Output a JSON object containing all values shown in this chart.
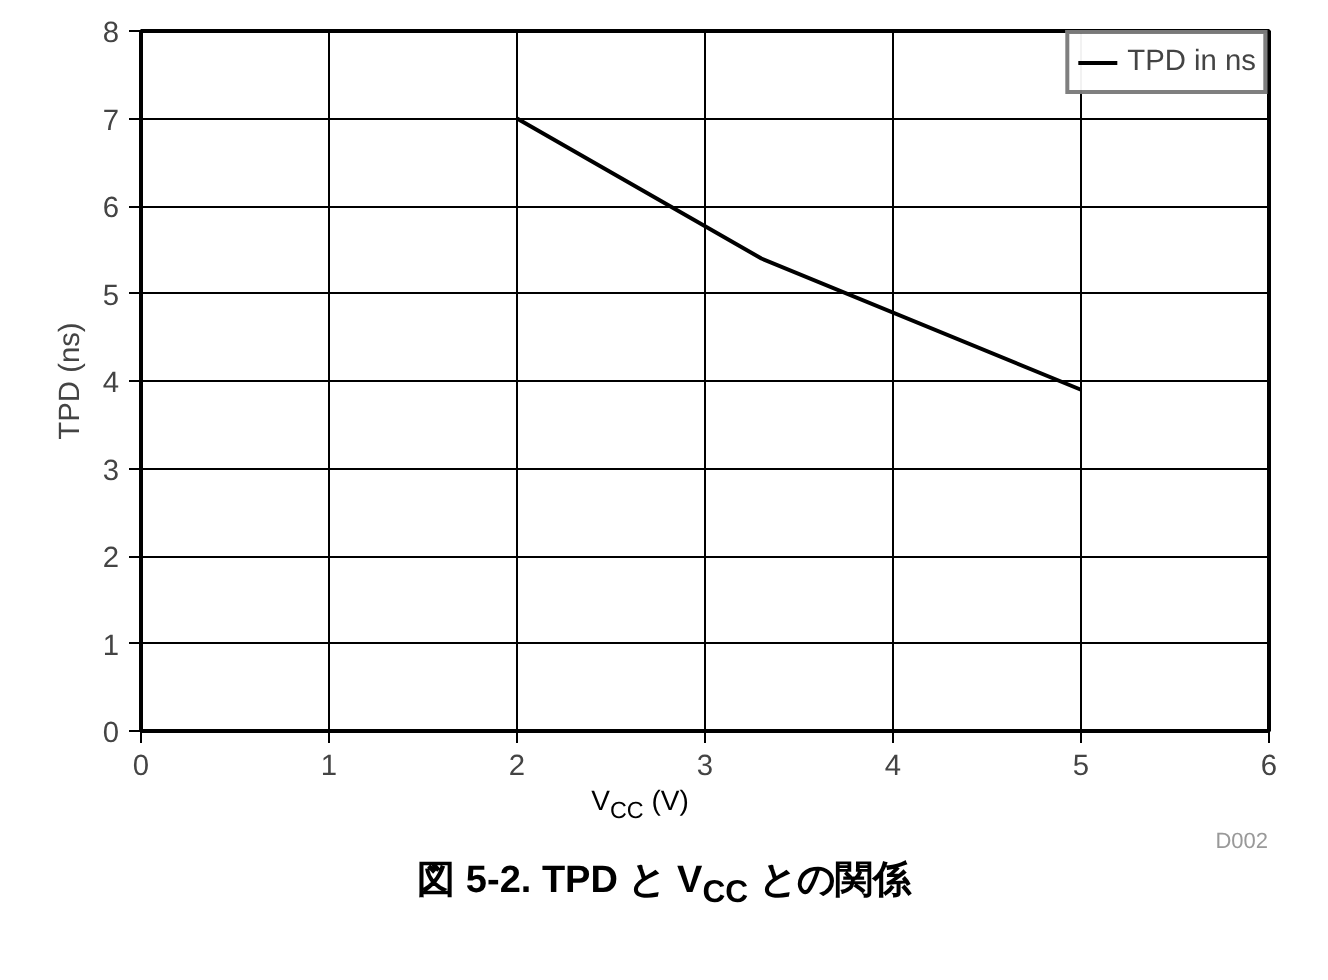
{
  "chart_data": {
    "type": "line",
    "title": "図 5-2. TPD と V$_{CC}$ との関係",
    "xlabel": "V$_{CC}$ (V)",
    "ylabel": "TPD (ns)",
    "annotations": [
      "D002"
    ],
    "x": [
      2,
      3.3,
      5
    ],
    "series": [
      {
        "name": "TPD in ns",
        "color": "#000000",
        "values": [
          7,
          5.4,
          3.9
        ]
      }
    ],
    "xlim": [
      0,
      6
    ],
    "ylim": [
      0,
      8
    ],
    "xticks": [
      0,
      1,
      2,
      3,
      4,
      5,
      6
    ],
    "yticks": [
      0,
      1,
      2,
      3,
      4,
      5,
      6,
      7,
      8
    ],
    "grid": true,
    "legend": "top right",
    "marker": "none",
    "line_style": "solid"
  }
}
